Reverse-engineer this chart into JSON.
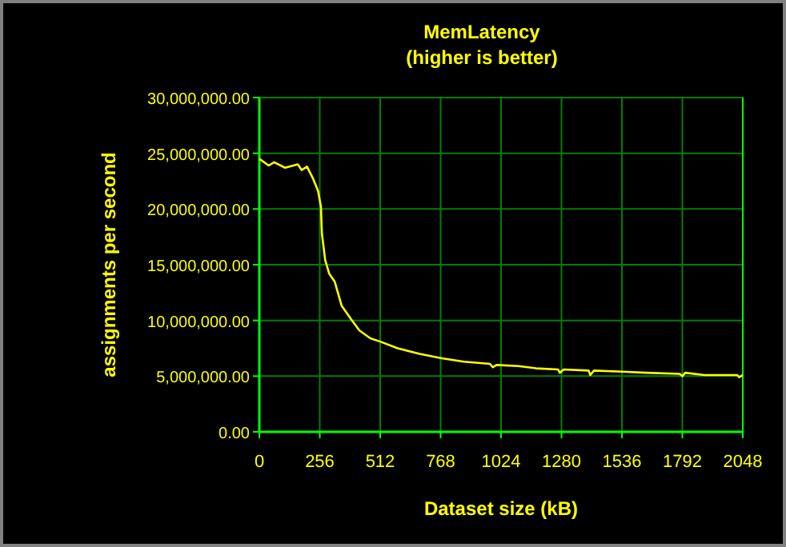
{
  "chart_data": {
    "type": "line",
    "title": "MemLatency",
    "subtitle": "(higher is better)",
    "xlabel": "Dataset size (kB)",
    "ylabel": "assignments per second",
    "xlim": [
      0,
      2048
    ],
    "xticks": [
      0,
      256,
      512,
      768,
      1024,
      1280,
      1536,
      1792,
      2048
    ],
    "ylim": [
      0,
      30000000
    ],
    "yticks": [
      {
        "value": 0,
        "label": "0.00"
      },
      {
        "value": 5000000,
        "label": "5,000,000.00"
      },
      {
        "value": 10000000,
        "label": "10,000,000.00"
      },
      {
        "value": 15000000,
        "label": "15,000,000.00"
      },
      {
        "value": 20000000,
        "label": "20,000,000.00"
      },
      {
        "value": 25000000,
        "label": "25,000,000.00"
      },
      {
        "value": 30000000,
        "label": "30,000,000.00"
      }
    ],
    "grid": true,
    "marker": "none",
    "line_style": "solid",
    "series": [
      {
        "color": "#ffff00",
        "x": [
          0,
          40,
          63,
          109,
          163,
          179,
          202,
          226,
          249,
          261,
          265,
          279,
          296,
          319,
          349,
          389,
          424,
          470,
          512,
          586,
          679,
          773,
          866,
          977,
          989,
          1005,
          1098,
          1172,
          1266,
          1273,
          1289,
          1395,
          1402,
          1418,
          1536,
          1640,
          1781,
          1792,
          1804,
          1886,
          2024,
          2033,
          2048
        ],
        "values": [
          24500000,
          23900000,
          24200000,
          23700000,
          24000000,
          23500000,
          23800000,
          22800000,
          21600000,
          20200000,
          17800000,
          15400000,
          14200000,
          13500000,
          11300000,
          10100000,
          9100000,
          8400000,
          8100000,
          7500000,
          7000000,
          6600000,
          6300000,
          6100000,
          5800000,
          6000000,
          5900000,
          5700000,
          5600000,
          5300000,
          5600000,
          5500000,
          5100000,
          5500000,
          5400000,
          5300000,
          5200000,
          5000000,
          5300000,
          5100000,
          5100000,
          4900000,
          5100000
        ]
      }
    ]
  }
}
